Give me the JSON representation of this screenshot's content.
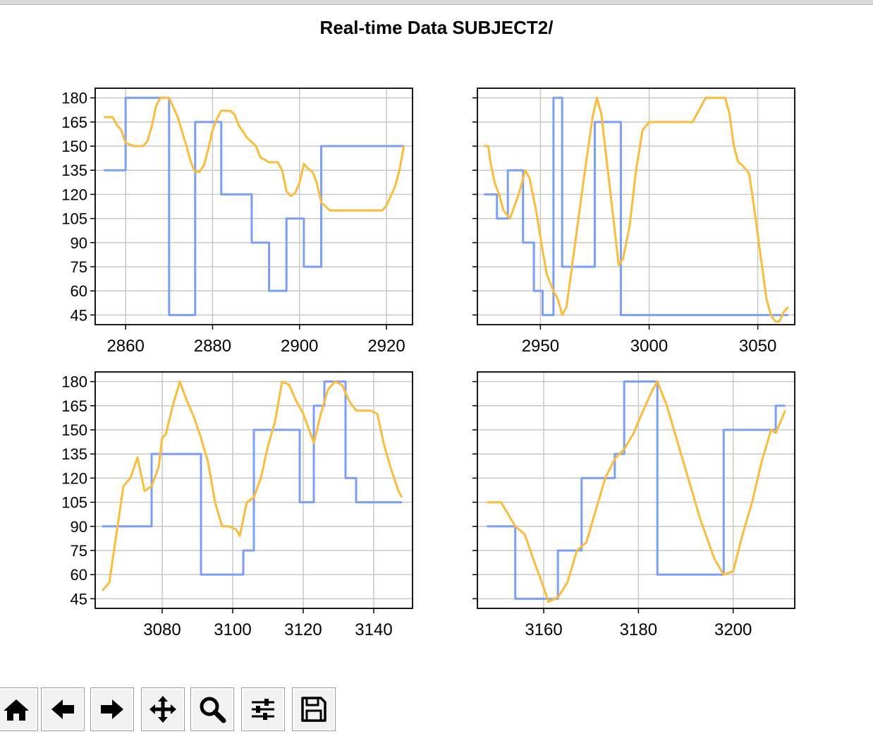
{
  "window": {
    "title": "Real-time Data SUBJECT2/"
  },
  "toolbar": {
    "buttons": [
      {
        "name": "home-button",
        "icon": "home-icon"
      },
      {
        "name": "back-button",
        "icon": "arrow-left-icon"
      },
      {
        "name": "forward-button",
        "icon": "arrow-right-icon"
      },
      {
        "name": "pan-button",
        "icon": "move-icon"
      },
      {
        "name": "zoom-button",
        "icon": "magnifier-icon"
      },
      {
        "name": "configure-subplots-button",
        "icon": "sliders-icon"
      },
      {
        "name": "save-button",
        "icon": "floppy-disk-icon"
      }
    ]
  },
  "colors": {
    "series_blue": "#7b9ff5",
    "series_orange": "#fbbc3e",
    "grid": "#c8c8c8"
  },
  "chart_data": [
    {
      "type": "line",
      "xlim": [
        2853,
        2926
      ],
      "ylim": [
        39,
        186
      ],
      "xticks": [
        2860,
        2880,
        2900,
        2920
      ],
      "yticks": [
        45,
        60,
        75,
        90,
        105,
        120,
        135,
        150,
        165,
        180
      ],
      "show_ytick_labels": true,
      "grid": true,
      "series": [
        {
          "color": "#7b9ff5",
          "step": true,
          "x": [
            2855,
            2860,
            2870,
            2876,
            2882,
            2889,
            2893,
            2897,
            2901,
            2905,
            2924
          ],
          "y": [
            135,
            180,
            45,
            165,
            120,
            90,
            60,
            105,
            75,
            150,
            150
          ]
        },
        {
          "color": "#fbbc3e",
          "step": false,
          "x": [
            2855,
            2857,
            2858,
            2859,
            2860,
            2862,
            2864,
            2865,
            2866,
            2867,
            2868,
            2870,
            2872,
            2874,
            2875,
            2876,
            2877,
            2878,
            2879,
            2880,
            2881,
            2882,
            2884,
            2885,
            2886,
            2888,
            2890,
            2891,
            2893,
            2895,
            2896,
            2897,
            2898,
            2899,
            2900,
            2901,
            2902,
            2903,
            2904,
            2905,
            2907,
            2910,
            2915,
            2919,
            2920,
            2922,
            2923,
            2924
          ],
          "y": [
            168,
            168,
            163,
            160,
            152,
            150,
            150,
            153,
            162,
            175,
            180,
            180,
            168,
            150,
            140,
            134,
            134,
            138,
            148,
            160,
            167,
            172,
            172,
            170,
            163,
            155,
            150,
            143,
            140,
            140,
            135,
            122,
            119,
            121,
            127,
            139,
            136,
            134,
            127,
            115,
            110,
            110,
            110,
            110,
            113,
            125,
            135,
            150
          ]
        }
      ]
    },
    {
      "type": "line",
      "xlim": [
        2921,
        3067
      ],
      "ylim": [
        39,
        186
      ],
      "xticks": [
        2950,
        3000,
        3050
      ],
      "yticks": [
        45,
        60,
        75,
        90,
        105,
        120,
        135,
        150,
        165,
        180
      ],
      "show_ytick_labels": false,
      "grid": true,
      "series": [
        {
          "color": "#7b9ff5",
          "step": true,
          "x": [
            2924,
            2930,
            2935,
            2942,
            2947,
            2951,
            2956,
            2960,
            2975,
            2987,
            2996,
            3064
          ],
          "y": [
            120,
            105,
            135,
            90,
            60,
            45,
            180,
            75,
            165,
            45,
            45,
            45
          ]
        },
        {
          "color": "#fbbc3e",
          "step": false,
          "x": [
            2924,
            2926,
            2927,
            2929,
            2931,
            2933,
            2936,
            2940,
            2943,
            2945,
            2948,
            2951,
            2953,
            2956,
            2958,
            2960,
            2962,
            2966,
            2970,
            2974,
            2976,
            2978,
            2981,
            2984,
            2986,
            2988,
            2991,
            2994,
            2997,
            3000,
            3010,
            3020,
            3026,
            3030,
            3035,
            3037,
            3039,
            3041,
            3043,
            3046,
            3048,
            3050,
            3052,
            3054,
            3056,
            3058,
            3060,
            3062,
            3064
          ],
          "y": [
            150,
            150,
            140,
            127,
            120,
            110,
            105,
            120,
            135,
            130,
            110,
            85,
            70,
            60,
            55,
            45,
            50,
            90,
            130,
            168,
            180,
            170,
            135,
            100,
            76,
            80,
            100,
            135,
            160,
            165,
            165,
            165,
            180,
            180,
            180,
            170,
            150,
            140,
            138,
            133,
            115,
            95,
            75,
            55,
            45,
            41,
            41,
            47,
            50
          ]
        }
      ]
    },
    {
      "type": "line",
      "xlim": [
        3061,
        3151
      ],
      "ylim": [
        39,
        186
      ],
      "xticks": [
        3060,
        3080,
        3100,
        3120,
        3140
      ],
      "yticks": [
        45,
        60,
        75,
        90,
        105,
        120,
        135,
        150,
        165,
        180
      ],
      "show_ytick_labels": true,
      "grid": true,
      "series": [
        {
          "color": "#7b9ff5",
          "step": true,
          "x": [
            3063,
            3077,
            3091,
            3103,
            3106,
            3119,
            3123,
            3126,
            3132,
            3135,
            3148
          ],
          "y": [
            90,
            135,
            60,
            75,
            150,
            105,
            165,
            180,
            120,
            105,
            105
          ]
        },
        {
          "color": "#fbbc3e",
          "step": false,
          "x": [
            3063,
            3065,
            3067,
            3069,
            3071,
            3073,
            3075,
            3077,
            3079,
            3080,
            3081,
            3083,
            3085,
            3087,
            3089,
            3091,
            3093,
            3095,
            3097,
            3099,
            3101,
            3102,
            3104,
            3106,
            3108,
            3110,
            3112,
            3114,
            3116,
            3118,
            3120,
            3122,
            3123,
            3125,
            3127,
            3129,
            3131,
            3133,
            3135,
            3137,
            3139,
            3141,
            3143,
            3145,
            3147,
            3148
          ],
          "y": [
            50,
            55,
            85,
            115,
            120,
            133,
            112,
            115,
            127,
            145,
            147,
            165,
            180,
            168,
            158,
            145,
            130,
            105,
            90,
            90,
            88,
            84,
            105,
            108,
            120,
            140,
            155,
            180,
            178,
            168,
            160,
            148,
            142,
            160,
            175,
            180,
            178,
            168,
            162,
            162,
            162,
            160,
            140,
            125,
            112,
            108
          ]
        }
      ]
    },
    {
      "type": "line",
      "xlim": [
        3146,
        3213
      ],
      "ylim": [
        39,
        186
      ],
      "xticks": [
        3160,
        3180,
        3200
      ],
      "yticks": [
        45,
        60,
        75,
        90,
        105,
        120,
        135,
        150,
        165,
        180
      ],
      "show_ytick_labels": false,
      "grid": true,
      "series": [
        {
          "color": "#7b9ff5",
          "step": true,
          "x": [
            3148,
            3154,
            3163,
            3168,
            3175,
            3177,
            3184,
            3198,
            3209,
            3211
          ],
          "y": [
            90,
            45,
            75,
            120,
            135,
            180,
            60,
            150,
            165,
            165
          ]
        },
        {
          "color": "#fbbc3e",
          "step": false,
          "x": [
            3148,
            3151,
            3152,
            3154,
            3156,
            3158,
            3160,
            3161,
            3163,
            3165,
            3167,
            3169,
            3171,
            3173,
            3175,
            3177,
            3179,
            3181,
            3183,
            3184,
            3186,
            3188,
            3190,
            3193,
            3196,
            3198,
            3200,
            3202,
            3204,
            3206,
            3208,
            3209,
            3211
          ],
          "y": [
            105,
            105,
            100,
            90,
            85,
            68,
            52,
            43,
            46,
            55,
            75,
            80,
            100,
            120,
            132,
            138,
            148,
            162,
            175,
            180,
            165,
            145,
            125,
            95,
            70,
            60,
            62,
            85,
            105,
            130,
            150,
            148,
            162
          ]
        }
      ]
    }
  ]
}
